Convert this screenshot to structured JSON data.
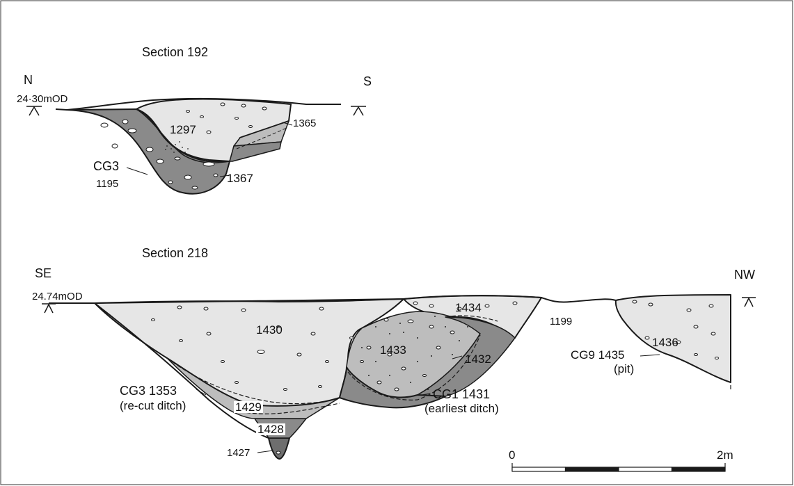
{
  "section_192": {
    "title": "Section 192",
    "orient_left": "N",
    "orient_right": "S",
    "datum": "24·30mOD",
    "contexts": {
      "c1297": "1297",
      "c1365": "1365",
      "c1367": "1367",
      "cg3": "CG3",
      "c1195": "1195"
    }
  },
  "section_218": {
    "title": "Section 218",
    "orient_left": "SE",
    "orient_right": "NW",
    "datum": "24.74mOD",
    "contexts": {
      "c1430": "1430",
      "c1434": "1434",
      "c1433": "1433",
      "c1432": "1432",
      "c1199": "1199",
      "c1436": "1436",
      "cg9_1435": "CG9 1435",
      "pit": "(pit)",
      "cg1_1431": "CG1 1431",
      "earliest": "(earliest ditch)",
      "cg3_1353": "CG3 1353",
      "recut": "(re-cut ditch)",
      "c1429": "1429",
      "c1428": "1428",
      "c1427": "1427"
    }
  },
  "scale_bar": {
    "start": "0",
    "end": "2m",
    "length_m": 2,
    "segments": 4
  },
  "colors": {
    "light_fill": "#e6e6e6",
    "mid_fill": "#bdbdbd",
    "dark_fill": "#8a8a8a",
    "darker_fill": "#6e6e6e",
    "line": "#1a1a1a"
  }
}
